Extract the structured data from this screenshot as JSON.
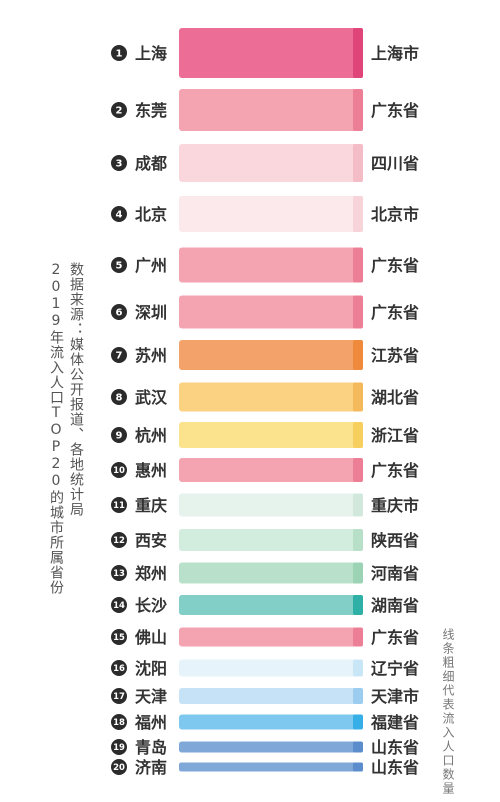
{
  "notes": {
    "source": "数据来源：媒体公开报道、各地统计局",
    "title": "2019年流入人口TOP20的城市所属省份",
    "legend": "线条粗细代表流入人口数量"
  },
  "chart_data": {
    "type": "bar",
    "title": "2019年流入人口TOP20的城市所属省份",
    "encoding": "bar thickness represents inflow population",
    "rows": [
      {
        "rank": "1",
        "city": "上海",
        "province": "上海市",
        "thickness": 50,
        "color": "#ec6d95",
        "accent": "#e0457a"
      },
      {
        "rank": "2",
        "city": "东莞",
        "province": "广东省",
        "thickness": 42,
        "color": "#f4a3b1",
        "accent": "#ec7f96"
      },
      {
        "rank": "3",
        "city": "成都",
        "province": "四川省",
        "thickness": 38,
        "color": "#f9d7dc",
        "accent": "#f4bcc6"
      },
      {
        "rank": "4",
        "city": "北京",
        "province": "北京市",
        "thickness": 36,
        "color": "#fce9ec",
        "accent": "#f7d3da"
      },
      {
        "rank": "5",
        "city": "广州",
        "province": "广东省",
        "thickness": 35,
        "color": "#f4a3b1",
        "accent": "#ec7f96"
      },
      {
        "rank": "6",
        "city": "深圳",
        "province": "广东省",
        "thickness": 33,
        "color": "#f4a3b1",
        "accent": "#ec7f96"
      },
      {
        "rank": "7",
        "city": "苏州",
        "province": "江苏省",
        "thickness": 30,
        "color": "#f3a36a",
        "accent": "#ef8a3c"
      },
      {
        "rank": "8",
        "city": "武汉",
        "province": "湖北省",
        "thickness": 29,
        "color": "#fad282",
        "accent": "#f4b95a"
      },
      {
        "rank": "9",
        "city": "杭州",
        "province": "浙江省",
        "thickness": 26,
        "color": "#fbe38e",
        "accent": "#f6cf5e"
      },
      {
        "rank": "10",
        "city": "惠州",
        "province": "广东省",
        "thickness": 24,
        "color": "#f4a3b1",
        "accent": "#ec7f96"
      },
      {
        "rank": "11",
        "city": "重庆",
        "province": "重庆市",
        "thickness": 23,
        "color": "#e6f2ec",
        "accent": "#d2e8dc"
      },
      {
        "rank": "12",
        "city": "西安",
        "province": "陕西省",
        "thickness": 22,
        "color": "#d2ecdd",
        "accent": "#b8e0c8"
      },
      {
        "rank": "13",
        "city": "郑州",
        "province": "河南省",
        "thickness": 21,
        "color": "#b8e0ca",
        "accent": "#9bd3b4"
      },
      {
        "rank": "14",
        "city": "长沙",
        "province": "湖南省",
        "thickness": 20,
        "color": "#82cfc8",
        "accent": "#2fb0a6"
      },
      {
        "rank": "15",
        "city": "佛山",
        "province": "广东省",
        "thickness": 19,
        "color": "#f4a3b1",
        "accent": "#ec7f96"
      },
      {
        "rank": "16",
        "city": "沈阳",
        "province": "辽宁省",
        "thickness": 17,
        "color": "#e6f3fb",
        "accent": "#c9e6f7"
      },
      {
        "rank": "17",
        "city": "天津",
        "province": "天津市",
        "thickness": 16,
        "color": "#c5e2f6",
        "accent": "#9ccdf0"
      },
      {
        "rank": "18",
        "city": "福州",
        "province": "福建省",
        "thickness": 15,
        "color": "#7ec8ef",
        "accent": "#36aee6"
      },
      {
        "rank": "19",
        "city": "青岛",
        "province": "山东省",
        "thickness": 11,
        "color": "#7fa8d8",
        "accent": "#5b8ccb"
      },
      {
        "rank": "20",
        "city": "济南",
        "province": "山东省",
        "thickness": 9,
        "color": "#7fa8d8",
        "accent": "#5b8ccb"
      }
    ]
  }
}
